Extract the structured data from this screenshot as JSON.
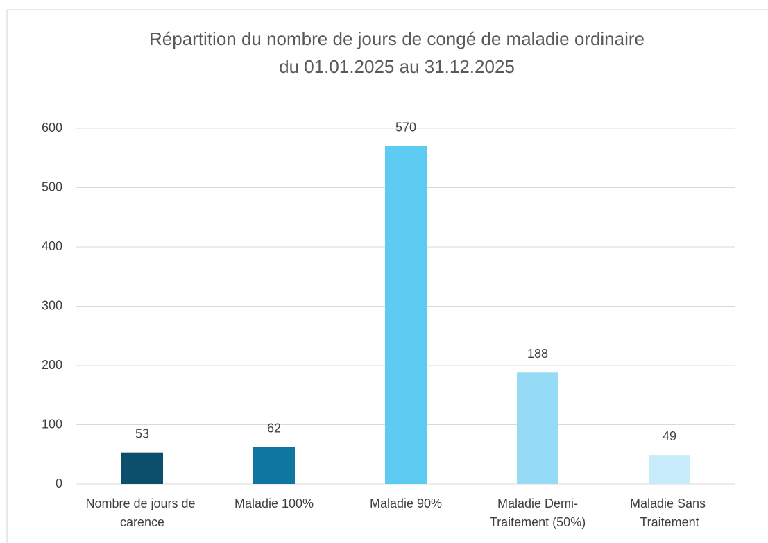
{
  "chart_data": {
    "type": "bar",
    "title": "Répartition du nombre de jours de congé de maladie ordinaire",
    "subtitle": "du 01.01.2025 au 31.12.2025",
    "categories": [
      "Nombre de jours de carence",
      "Maladie 100%",
      "Maladie 90%",
      "Maladie Demi-Traitement (50%)",
      "Maladie Sans Traitement"
    ],
    "values": [
      53,
      62,
      570,
      188,
      49
    ],
    "colors": [
      "#0b4f6c",
      "#0e76a0",
      "#5ecbf3",
      "#95dbf5",
      "#c9ecfa"
    ],
    "ylim": [
      0,
      600
    ],
    "yticks": [
      0,
      100,
      200,
      300,
      400,
      500,
      600
    ],
    "grid": true
  }
}
